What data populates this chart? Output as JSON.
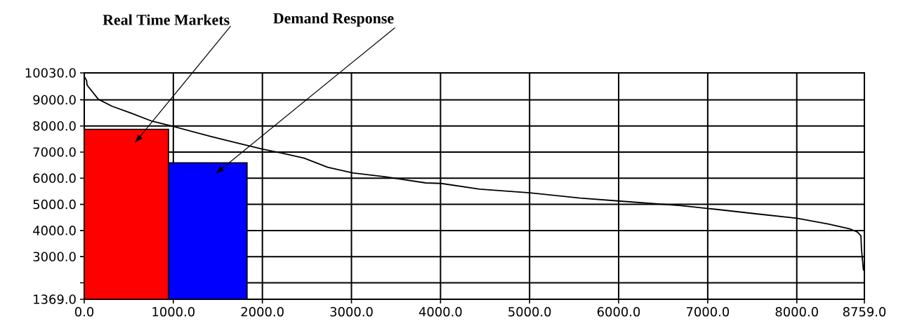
{
  "chart_data": {
    "type": "line",
    "xlim": [
      0,
      8759
    ],
    "ylim": [
      1369,
      10030
    ],
    "xticks": [
      {
        "value": 0,
        "label": "0.0"
      },
      {
        "value": 1000,
        "label": "1000.0"
      },
      {
        "value": 2000,
        "label": "2000.0"
      },
      {
        "value": 3000,
        "label": "3000.0"
      },
      {
        "value": 4000,
        "label": "4000.0"
      },
      {
        "value": 5000,
        "label": "5000.0"
      },
      {
        "value": 6000,
        "label": "6000.0"
      },
      {
        "value": 7000,
        "label": "7000.0"
      },
      {
        "value": 8000,
        "label": "8000.0"
      },
      {
        "value": 8759,
        "label": "8759.0"
      }
    ],
    "yticks": [
      {
        "value": 1369,
        "label": "1369.0"
      },
      {
        "value": 2000,
        "label": null
      },
      {
        "value": 3000,
        "label": "3000.0"
      },
      {
        "value": 4000,
        "label": "4000.0"
      },
      {
        "value": 5000,
        "label": "5000.0"
      },
      {
        "value": 6000,
        "label": "6000.0"
      },
      {
        "value": 7000,
        "label": "7000.0"
      },
      {
        "value": 8000,
        "label": "8000.0"
      },
      {
        "value": 9000,
        "label": "9000.0"
      },
      {
        "value": 10030,
        "label": "10030.0"
      }
    ],
    "grid": true,
    "series": [
      {
        "type": "histogram",
        "bins": [
          0,
          946,
          1828
        ],
        "values": [
          7870,
          6590
        ],
        "colors": [
          "#ff0000",
          "#0000ff"
        ]
      },
      {
        "color": "#000000",
        "x": [
          0,
          26,
          32,
          158,
          315,
          525,
          762,
          1000,
          1418,
          1680,
          2004,
          2206,
          2364,
          2469,
          2732,
          3020,
          3388,
          3835,
          4009,
          4439,
          5004,
          5568,
          5997,
          6698,
          7013,
          7539,
          8000,
          8353,
          8590,
          8681,
          8720,
          8726,
          8747,
          8759
        ],
        "values": [
          9900,
          9740,
          9560,
          9020,
          8750,
          8490,
          8180,
          7980,
          7600,
          7380,
          7110,
          6970,
          6850,
          6770,
          6420,
          6200,
          6050,
          5820,
          5800,
          5580,
          5440,
          5240,
          5130,
          4950,
          4840,
          4640,
          4470,
          4250,
          4070,
          3940,
          3800,
          3310,
          2510,
          2450
        ]
      }
    ],
    "annotations": [
      "Real Time Markets",
      "Demand Response"
    ]
  }
}
